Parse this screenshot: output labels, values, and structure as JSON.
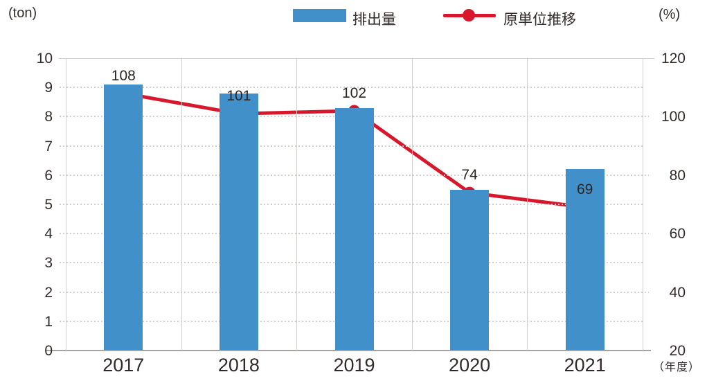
{
  "header": {
    "left_axis_unit": "(ton)",
    "right_axis_unit": "(%)",
    "x_axis_unit": "（年度）",
    "legend": [
      {
        "label": "排出量",
        "marker": "bar-swatch",
        "color": "#4190ca"
      },
      {
        "label": "原単位推移",
        "marker": "line-with-dot",
        "color": "#d7182c"
      }
    ]
  },
  "chart_data": {
    "type": "bar+line combo",
    "title": "",
    "categories": [
      "2017",
      "2018",
      "2019",
      "2020",
      "2021"
    ],
    "series": [
      {
        "name": "排出量",
        "type": "bar",
        "axis": "left",
        "unit": "ton",
        "color": "#4190ca",
        "values": [
          9.1,
          8.8,
          8.3,
          5.5,
          6.2
        ]
      },
      {
        "name": "原単位推移",
        "type": "line",
        "axis": "right",
        "unit": "%",
        "color": "#d7182c",
        "values": [
          108,
          101,
          102,
          74,
          69
        ],
        "data_labels": [
          "108",
          "101",
          "102",
          "74",
          "69"
        ]
      }
    ],
    "left_axis": {
      "unit": "(ton)",
      "min": 0,
      "max": 10,
      "step": 1,
      "ticks": [
        0,
        1,
        2,
        3,
        4,
        5,
        6,
        7,
        8,
        9,
        10
      ]
    },
    "right_axis": {
      "unit": "(%)",
      "min": 20,
      "max": 120,
      "step": 20,
      "ticks": [
        20,
        40,
        60,
        80,
        100,
        120
      ]
    },
    "x_axis": {
      "unit": "（年度）"
    },
    "grid": "horizontal dotted, vertical solid category separators",
    "legend_position": "top-center"
  },
  "colors": {
    "bar": "#4190ca",
    "line": "#d7182c",
    "text": "#322a28",
    "grid": "#d2cecb",
    "axis_line": "#a6a29f",
    "background": "#ffffff"
  }
}
